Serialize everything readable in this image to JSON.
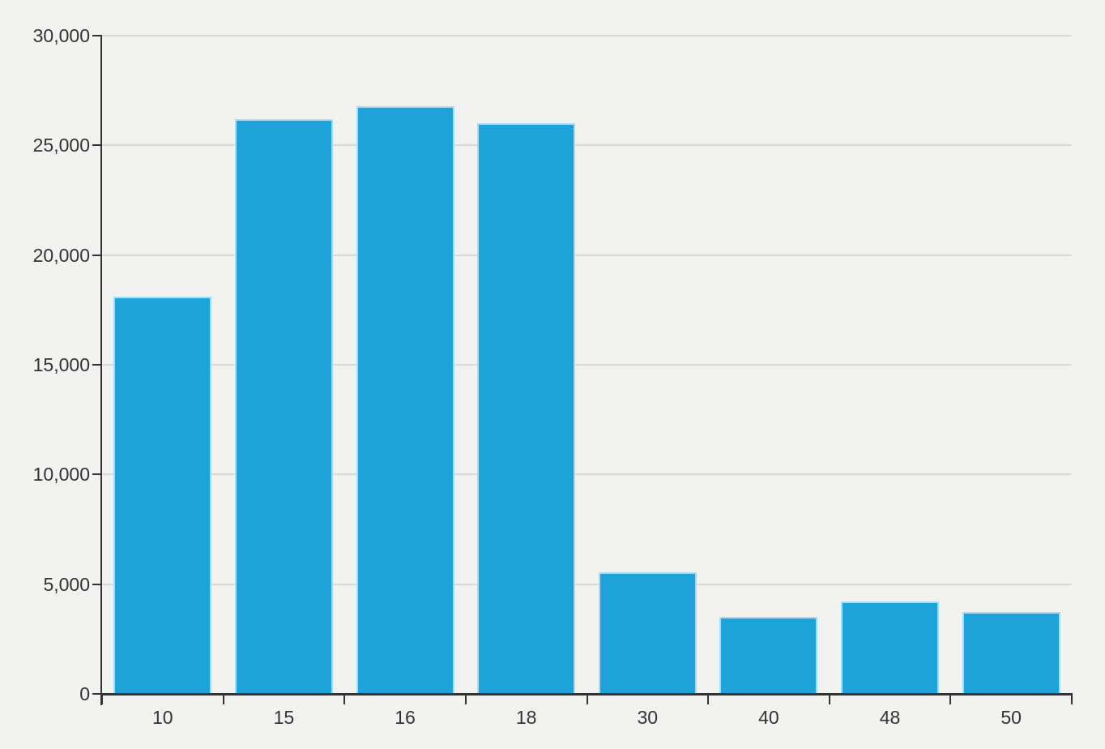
{
  "chart_data": {
    "type": "bar",
    "title": "",
    "xlabel": "",
    "ylabel": "",
    "categories": [
      "10",
      "15",
      "16",
      "18",
      "30",
      "40",
      "48",
      "50"
    ],
    "values": [
      18100,
      26200,
      26800,
      26000,
      5550,
      3500,
      4200,
      3750
    ],
    "ylim": [
      0,
      30000
    ],
    "ytick_step": 5000,
    "y_tick_labels": [
      "0",
      "5,000",
      "10,000",
      "15,000",
      "20,000",
      "25,000",
      "30,000"
    ],
    "grid": true,
    "legend": "none",
    "colors": {
      "bar_fill": "#1ea3d8",
      "bar_stroke": "#a9dbf2",
      "background": "#f2f2f0",
      "gridline": "#d8d8d6",
      "axis": "#333333",
      "text": "#333333"
    }
  }
}
